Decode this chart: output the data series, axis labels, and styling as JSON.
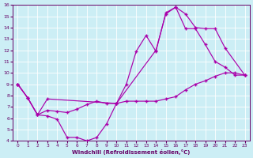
{
  "background_color": "#cceef5",
  "line_color": "#aa00aa",
  "grid_color": "#ffffff",
  "xlabel": "Windchill (Refroidissement éolien,°C)",
  "xlabel_color": "#660066",
  "tick_color": "#660066",
  "xlim": [
    -0.5,
    23.5
  ],
  "ylim": [
    4,
    16
  ],
  "xticks": [
    0,
    1,
    2,
    3,
    4,
    5,
    6,
    7,
    8,
    9,
    10,
    11,
    12,
    13,
    14,
    15,
    16,
    17,
    18,
    19,
    20,
    21,
    22,
    23
  ],
  "yticks": [
    4,
    5,
    6,
    7,
    8,
    9,
    10,
    11,
    12,
    13,
    14,
    15,
    16
  ],
  "line1_x": [
    0,
    1,
    2,
    3,
    4,
    5,
    6,
    7,
    8,
    9,
    10,
    11,
    12,
    13,
    14,
    15,
    16,
    17,
    18,
    19,
    20,
    21,
    22,
    23
  ],
  "line1_y": [
    9,
    7.8,
    6.3,
    6.2,
    5.9,
    4.3,
    4.3,
    4.0,
    4.3,
    5.5,
    7.3,
    9.0,
    11.9,
    13.3,
    11.9,
    15.3,
    15.8,
    13.9,
    13.9,
    12.5,
    11.0,
    10.5,
    9.8,
    9.8
  ],
  "line2_x": [
    0,
    1,
    2,
    3,
    4,
    5,
    6,
    7,
    8,
    9,
    10,
    11,
    12,
    13,
    14,
    15,
    16,
    17,
    18,
    19,
    20,
    21,
    22,
    23
  ],
  "line2_y": [
    9,
    7.8,
    6.3,
    6.7,
    6.6,
    6.5,
    6.8,
    7.2,
    7.5,
    7.3,
    7.3,
    7.5,
    7.5,
    7.5,
    7.5,
    7.7,
    7.9,
    8.5,
    9.0,
    9.3,
    9.7,
    10.0,
    10.0,
    9.8
  ],
  "line3_x": [
    0,
    1,
    2,
    3,
    10,
    14,
    15,
    16,
    17,
    18,
    19,
    20,
    21,
    23
  ],
  "line3_y": [
    9,
    7.8,
    6.3,
    7.7,
    7.3,
    12.0,
    15.2,
    15.8,
    15.2,
    14.0,
    13.9,
    13.9,
    12.2,
    9.8
  ]
}
